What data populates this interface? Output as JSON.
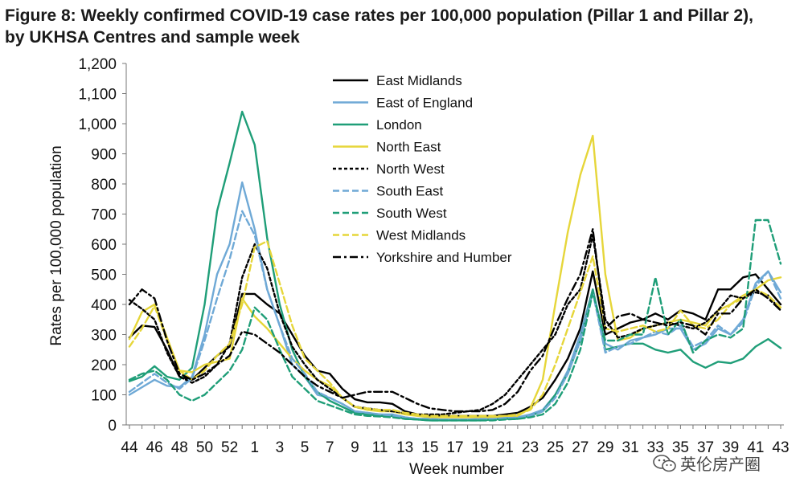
{
  "title": "Figure 8: Weekly confirmed COVID-19 case rates per 100,000 population (Pillar 1 and Pillar 2), by UKHSA Centres and sample week",
  "watermark": "英伦房产圈",
  "chart_data": {
    "type": "line",
    "xlabel": "Week number",
    "ylabel": "Rates per 100,000 population",
    "ylim": [
      0,
      1200
    ],
    "yticks": [
      "0",
      "100",
      "200",
      "300",
      "400",
      "500",
      "600",
      "700",
      "800",
      "900",
      "1,000",
      "1,100",
      "1,200"
    ],
    "x": [
      44,
      45,
      46,
      47,
      48,
      49,
      50,
      51,
      52,
      53,
      1,
      2,
      3,
      4,
      5,
      6,
      7,
      8,
      9,
      10,
      11,
      12,
      13,
      14,
      15,
      16,
      17,
      18,
      19,
      20,
      21,
      22,
      23,
      24,
      25,
      26,
      27,
      28,
      29,
      30,
      31,
      32,
      33,
      34,
      35,
      36,
      37,
      38,
      39,
      40,
      41,
      42,
      43
    ],
    "xticks": [
      "44",
      "46",
      "48",
      "50",
      "52",
      "1",
      "3",
      "5",
      "7",
      "9",
      "11",
      "13",
      "15",
      "17",
      "19",
      "21",
      "23",
      "25",
      "27",
      "29",
      "31",
      "33",
      "35",
      "37",
      "39",
      "41",
      "43"
    ],
    "grid": false,
    "legend_position": "top-center",
    "series": [
      {
        "name": "East Midlands",
        "color": "#000000",
        "dash": "solid",
        "values": [
          290,
          330,
          325,
          250,
          160,
          150,
          190,
          230,
          260,
          435,
          435,
          400,
          370,
          300,
          230,
          180,
          170,
          120,
          85,
          75,
          75,
          70,
          45,
          35,
          30,
          30,
          30,
          30,
          30,
          30,
          35,
          40,
          60,
          90,
          150,
          220,
          320,
          510,
          300,
          320,
          340,
          350,
          370,
          350,
          380,
          370,
          350,
          450,
          450,
          490,
          500,
          450,
          400
        ]
      },
      {
        "name": "East of England",
        "color": "#6fa9d6",
        "dash": "solid",
        "values": [
          100,
          125,
          150,
          130,
          125,
          160,
          300,
          500,
          600,
          805,
          650,
          450,
          330,
          200,
          160,
          100,
          90,
          70,
          45,
          40,
          35,
          35,
          25,
          20,
          20,
          18,
          18,
          18,
          20,
          20,
          25,
          25,
          35,
          50,
          100,
          180,
          300,
          450,
          270,
          250,
          280,
          290,
          300,
          320,
          320,
          250,
          270,
          320,
          300,
          350,
          470,
          510,
          440
        ]
      },
      {
        "name": "London",
        "color": "#1f9e78",
        "dash": "solid",
        "values": [
          145,
          160,
          195,
          160,
          150,
          190,
          400,
          710,
          870,
          1040,
          930,
          620,
          400,
          250,
          160,
          110,
          80,
          60,
          40,
          35,
          30,
          30,
          20,
          18,
          15,
          15,
          15,
          15,
          15,
          18,
          20,
          20,
          30,
          45,
          100,
          170,
          280,
          450,
          250,
          260,
          270,
          270,
          250,
          240,
          250,
          210,
          190,
          210,
          205,
          220,
          260,
          285,
          255
        ]
      },
      {
        "name": "North East",
        "color": "#e6d63a",
        "dash": "solid",
        "values": [
          285,
          375,
          400,
          290,
          180,
          175,
          200,
          210,
          220,
          420,
          360,
          320,
          270,
          220,
          180,
          150,
          130,
          90,
          60,
          50,
          45,
          45,
          35,
          30,
          25,
          25,
          25,
          25,
          25,
          25,
          30,
          30,
          55,
          150,
          400,
          640,
          830,
          960,
          500,
          280,
          290,
          320,
          330,
          340,
          350,
          340,
          330,
          380,
          400,
          430,
          450,
          480,
          490
        ]
      },
      {
        "name": "North West",
        "color": "#000000",
        "dash": "4 3",
        "values": [
          415,
          385,
          350,
          240,
          160,
          140,
          160,
          200,
          270,
          490,
          600,
          520,
          370,
          260,
          200,
          150,
          120,
          90,
          60,
          55,
          50,
          45,
          40,
          35,
          35,
          35,
          40,
          45,
          50,
          70,
          100,
          150,
          200,
          250,
          300,
          400,
          450,
          630,
          350,
          290,
          300,
          320,
          330,
          340,
          330,
          320,
          340,
          380,
          430,
          420,
          440,
          430,
          380
        ]
      },
      {
        "name": "South East",
        "color": "#6fa9d6",
        "dash": "8 4",
        "values": [
          110,
          140,
          170,
          140,
          120,
          155,
          280,
          420,
          550,
          710,
          630,
          450,
          330,
          220,
          170,
          110,
          90,
          70,
          45,
          40,
          35,
          30,
          25,
          20,
          20,
          18,
          18,
          18,
          20,
          20,
          22,
          25,
          30,
          45,
          90,
          170,
          280,
          440,
          240,
          260,
          270,
          290,
          310,
          300,
          330,
          260,
          280,
          330,
          300,
          340,
          460,
          510,
          420
        ]
      },
      {
        "name": "South West",
        "color": "#1f9e78",
        "dash": "8 4",
        "values": [
          150,
          170,
          180,
          150,
          100,
          80,
          100,
          140,
          180,
          250,
          390,
          350,
          250,
          160,
          120,
          80,
          65,
          50,
          35,
          30,
          28,
          25,
          20,
          18,
          15,
          15,
          15,
          15,
          15,
          15,
          18,
          20,
          25,
          35,
          70,
          140,
          250,
          440,
          280,
          280,
          300,
          300,
          490,
          300,
          350,
          240,
          280,
          300,
          290,
          320,
          680,
          680,
          535
        ]
      },
      {
        "name": "West Midlands",
        "color": "#e6d63a",
        "dash": "8 4",
        "values": [
          260,
          320,
          395,
          280,
          180,
          150,
          180,
          230,
          270,
          400,
          590,
          610,
          470,
          330,
          220,
          180,
          140,
          90,
          60,
          55,
          50,
          50,
          40,
          35,
          30,
          30,
          30,
          30,
          30,
          30,
          30,
          35,
          50,
          100,
          200,
          320,
          440,
          560,
          320,
          310,
          320,
          330,
          310,
          320,
          380,
          330,
          320,
          350,
          400,
          420,
          450,
          430,
          390
        ]
      },
      {
        "name": "Yorkshire and Humber",
        "color": "#000000",
        "dash": "10 4 3 4",
        "values": [
          400,
          450,
          420,
          280,
          170,
          150,
          170,
          200,
          230,
          310,
          300,
          270,
          240,
          200,
          160,
          130,
          110,
          90,
          100,
          110,
          110,
          110,
          90,
          70,
          55,
          50,
          45,
          45,
          45,
          50,
          70,
          110,
          180,
          230,
          330,
          420,
          500,
          650,
          320,
          360,
          370,
          350,
          340,
          330,
          340,
          330,
          300,
          370,
          370,
          420,
          450,
          420,
          380
        ]
      }
    ]
  }
}
